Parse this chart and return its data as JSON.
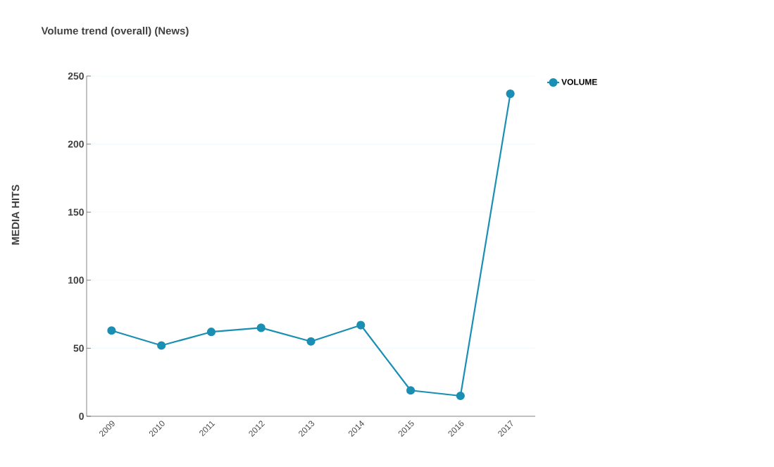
{
  "chart_data": {
    "type": "line",
    "title": "Volume trend (overall) (News)",
    "ylabel": "MEDIA HITS",
    "categories": [
      "2009",
      "2010",
      "2011",
      "2012",
      "2013",
      "2014",
      "2015",
      "2016",
      "2017"
    ],
    "series": [
      {
        "name": "VOLUME",
        "color": "#1a8fb3",
        "values": [
          63,
          52,
          62,
          65,
          55,
          67,
          19,
          15,
          237
        ]
      }
    ],
    "ylim": [
      0,
      250
    ],
    "yticks": [
      0,
      50,
      100,
      150,
      200,
      250
    ],
    "grid": "y",
    "legend": "top right",
    "marker": "circle",
    "line_style": "solid"
  }
}
